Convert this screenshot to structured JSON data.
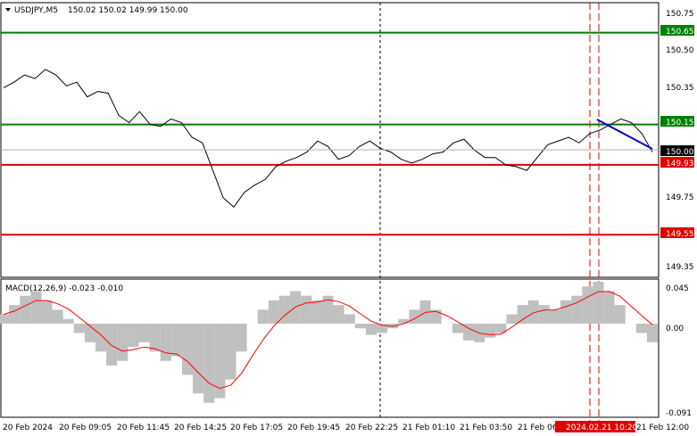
{
  "header": {
    "symbol_tf": "USDJPY,M5",
    "ohlc": "150.02 150.02 149.99 150.00"
  },
  "price_axis": {
    "ticks": [
      "150.75",
      "150.50",
      "150.35",
      "149.75",
      "149.35"
    ],
    "min": 149.3,
    "max": 150.8
  },
  "levels": [
    {
      "label": "150.65",
      "value": 150.65,
      "color": "#008000"
    },
    {
      "label": "150.15",
      "value": 150.15,
      "color": "#008000"
    },
    {
      "label": "149.93",
      "value": 149.93,
      "color": "#e00000"
    },
    {
      "label": "149.55",
      "value": 149.55,
      "color": "#e00000"
    }
  ],
  "current_price": {
    "label": "150.00",
    "value": 150.0
  },
  "macd": {
    "title": "MACD(12,26,9) -0.023 -0.010",
    "ticks": [
      "0.045",
      "0.00",
      "-0.091"
    ],
    "min": -0.091,
    "max": 0.045
  },
  "time_axis": {
    "labels": [
      "20 Feb 2024",
      "20 Feb 09:05",
      "20 Feb 11:45",
      "20 Feb 14:25",
      "20 Feb 17:05",
      "20 Feb 19:45",
      "20 Feb 22:25",
      "21 Feb 01:10",
      "21 Feb 03:50",
      "21 Feb 06:"
    ],
    "highlight": "2024.02.21 10:20",
    "last": "21 Feb 12:00"
  },
  "colors": {
    "price_line": "#000000",
    "macd_hist": "#c0c0c0",
    "signal": "#ff0000",
    "trend": "#0000cc"
  },
  "chart_data": {
    "type": "line",
    "series": [
      {
        "values": [
          150.35,
          150.38,
          150.42,
          150.4,
          150.45,
          150.42,
          150.36,
          150.38,
          150.3,
          150.33,
          150.32,
          150.2,
          150.16,
          150.22,
          150.15,
          150.14,
          150.18,
          150.16,
          150.08,
          150.05,
          149.9,
          149.75,
          149.7,
          149.78,
          149.82,
          149.85,
          149.92,
          149.95,
          149.97,
          150.0,
          150.06,
          150.03,
          149.96,
          149.98,
          150.03,
          150.06,
          150.02,
          150.0,
          149.96,
          149.94,
          149.96,
          149.99,
          150.0,
          150.05,
          150.07,
          150.01,
          149.97,
          149.97,
          149.93,
          149.92,
          149.9,
          149.97,
          150.04,
          150.06,
          150.08,
          150.05,
          150.1,
          150.12,
          150.15,
          150.18,
          150.16,
          150.1,
          150.0
        ]
      }
    ]
  }
}
